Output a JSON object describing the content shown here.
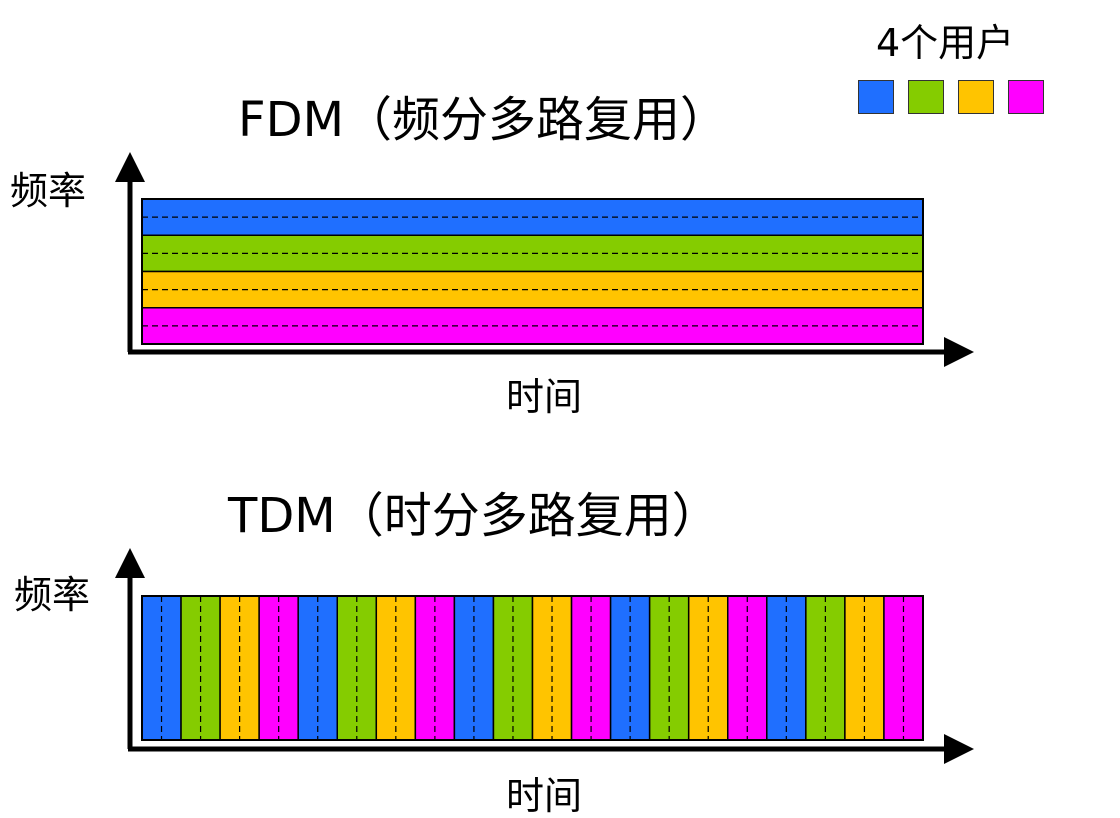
{
  "legend": {
    "title": "4个用户",
    "users": [
      {
        "color": "#1f6fff"
      },
      {
        "color": "#85cc00"
      },
      {
        "color": "#ffc400"
      },
      {
        "color": "#ff00ff"
      }
    ]
  },
  "fdm": {
    "title": "FDM（频分多路复用）",
    "y_label": "频率",
    "x_label": "时间"
  },
  "tdm": {
    "title": "TDM（时分多路复用）",
    "y_label": "频率",
    "x_label": "时间",
    "slot_count": 20
  }
}
